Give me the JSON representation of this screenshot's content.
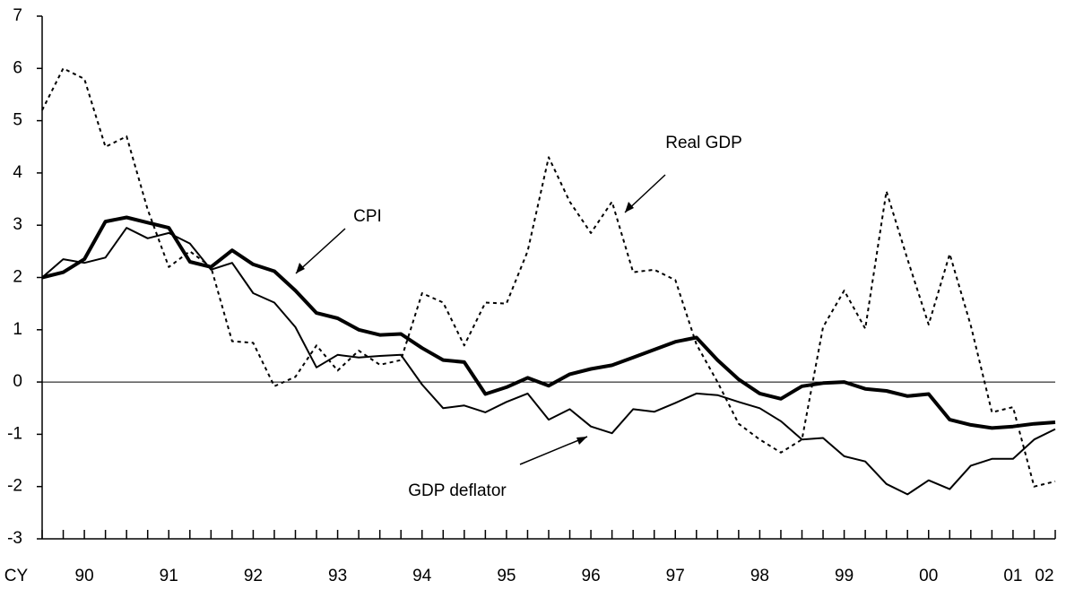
{
  "chart_data": {
    "type": "line",
    "x_label": "CY",
    "categories": [
      null,
      null,
      "90",
      null,
      null,
      null,
      "91",
      null,
      null,
      null,
      "92",
      null,
      null,
      null,
      "93",
      null,
      null,
      null,
      "94",
      null,
      null,
      null,
      "95",
      null,
      null,
      null,
      "96",
      null,
      null,
      null,
      "97",
      null,
      null,
      null,
      "98",
      null,
      null,
      null,
      "99",
      null,
      null,
      null,
      "00",
      null,
      null,
      null,
      "01",
      null,
      "02"
    ],
    "ylim": [
      -3,
      7
    ],
    "yticks": [
      -3,
      -2,
      -1,
      0,
      1,
      2,
      3,
      4,
      5,
      6,
      7
    ],
    "zero_line": true,
    "series": [
      {
        "name": "CPI",
        "color": "#000000",
        "linewidth": 4,
        "linestyle": "solid",
        "values": [
          2.0,
          2.1,
          2.35,
          3.07,
          3.15,
          3.05,
          2.95,
          2.3,
          2.2,
          2.52,
          2.25,
          2.12,
          1.75,
          1.32,
          1.22,
          1.0,
          0.9,
          0.92,
          0.65,
          0.42,
          0.38,
          -0.23,
          -0.1,
          0.08,
          -0.07,
          0.15,
          0.25,
          0.32,
          0.47,
          0.62,
          0.77,
          0.85,
          0.42,
          0.05,
          -0.22,
          -0.32,
          -0.08,
          -0.02,
          0.0,
          -0.13,
          -0.17,
          -0.27,
          -0.23,
          -0.72,
          -0.82,
          -0.88,
          -0.85,
          -0.8,
          -0.77
        ]
      },
      {
        "name": "GDP deflator",
        "color": "#000000",
        "linewidth": 2,
        "linestyle": "solid",
        "values": [
          2.0,
          2.35,
          2.28,
          2.38,
          2.95,
          2.75,
          2.85,
          2.65,
          2.15,
          2.28,
          1.7,
          1.52,
          1.05,
          0.28,
          0.52,
          0.47,
          0.5,
          0.52,
          -0.05,
          -0.5,
          -0.45,
          -0.58,
          -0.38,
          -0.22,
          -0.72,
          -0.52,
          -0.85,
          -0.98,
          -0.52,
          -0.57,
          -0.4,
          -0.22,
          -0.25,
          -0.38,
          -0.5,
          -0.75,
          -1.1,
          -1.07,
          -1.42,
          -1.52,
          -1.95,
          -2.15,
          -1.88,
          -2.05,
          -1.6,
          -1.47,
          -1.47,
          -1.1,
          -0.9
        ]
      },
      {
        "name": "Real GDP",
        "color": "#000000",
        "linewidth": 2,
        "linestyle": "dotted",
        "values": [
          5.2,
          6.0,
          5.8,
          4.5,
          4.7,
          3.3,
          2.2,
          2.5,
          2.2,
          0.78,
          0.75,
          -0.08,
          0.1,
          0.7,
          0.22,
          0.6,
          0.33,
          0.42,
          1.7,
          1.52,
          0.7,
          1.52,
          1.5,
          2.5,
          4.3,
          3.45,
          2.85,
          3.45,
          2.1,
          2.15,
          1.95,
          0.72,
          0.0,
          -0.8,
          -1.1,
          -1.35,
          -1.1,
          1.05,
          1.75,
          1.02,
          3.65,
          2.35,
          1.1,
          2.45,
          1.08,
          -0.58,
          -0.48,
          -2.0,
          -1.9
        ]
      }
    ]
  }
}
